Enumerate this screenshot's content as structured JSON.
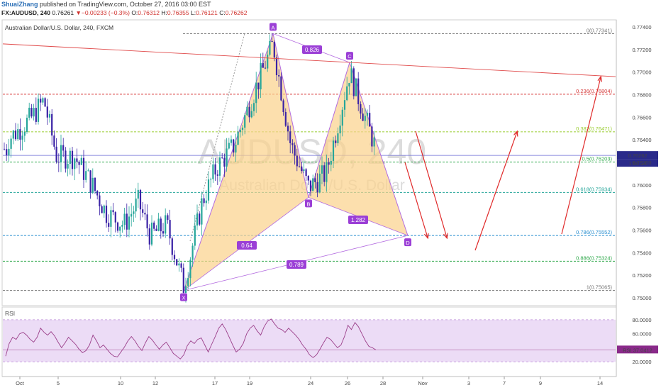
{
  "header": {
    "author": "ShuaiZhang",
    "published": "published on TradingView.com, October 27, 2016 03:00 EST",
    "symbol": "FX:AUDUSD, 240",
    "last": "0.76261",
    "change": "−0.00233 (−0.3%)",
    "open_label": "O:",
    "open": "0.76312",
    "high_label": "H:",
    "high": "0.76355",
    "low_label": "L:",
    "low": "0.76121",
    "close_label": "C:",
    "close": "0.76262"
  },
  "chart_subtitle": "Australian Dollar/U.S. Dollar, 240, FXCM",
  "watermark": {
    "symbol": "AUDUSD, 240",
    "name": "Australian Dollar/U.S. Dollar"
  },
  "colors": {
    "bull": "#26a69a",
    "bear": "#3a22a6",
    "pattern_fill": "#fbd28a",
    "pattern_line": "#b36be0",
    "label_bg": "#9b3fd6",
    "trend": "#e04a4a",
    "arrow": "#e02a2a",
    "rsi_line": "#9b3f8a",
    "rsi_band": "#ecdcf6"
  },
  "chart_data": {
    "type": "candlestick",
    "y_ticks": [
      "0.77400",
      "0.77200",
      "0.77000",
      "0.76800",
      "0.76600",
      "0.76400",
      "0.76200",
      "0.76000",
      "0.75800",
      "0.75600",
      "0.75400",
      "0.75200",
      "0.75000"
    ],
    "ylim": [
      0.7496,
      0.7746
    ],
    "x_ticks": [
      "Oct",
      "5",
      "10",
      "12",
      "17",
      "19",
      "24",
      "26",
      "28",
      "Nov",
      "3",
      "7",
      "9",
      "14"
    ],
    "price_label": "0.76262",
    "countdown_label": "1:00:14",
    "fib_levels": [
      {
        "ratio": "0",
        "price": 0.77341,
        "label": "0(0.77341)",
        "color": "#777777"
      },
      {
        "ratio": "0.236",
        "price": 0.76804,
        "label": "0.236(0.76804)",
        "color": "#d63b3b"
      },
      {
        "ratio": "0.382",
        "price": 0.76471,
        "label": "0.382(0.76471)",
        "color": "#9acd32"
      },
      {
        "ratio": "0.5",
        "price": 0.76203,
        "label": "0.5(0.76203)",
        "color": "#2ea84a"
      },
      {
        "ratio": "0.618",
        "price": 0.75934,
        "label": "0.618(0.75934)",
        "color": "#26a69a"
      },
      {
        "ratio": "0.786",
        "price": 0.75552,
        "label": "0.786(0.75552)",
        "color": "#2a8fd0"
      },
      {
        "ratio": "0.886",
        "price": 0.75324,
        "label": "0.886(0.75324)",
        "color": "#2ea84a"
      },
      {
        "ratio": "1",
        "price": 0.75065,
        "label": "1(0.75065)",
        "color": "#777777"
      }
    ],
    "pattern_points": [
      {
        "name": "X",
        "price": 0.75065
      },
      {
        "name": "A",
        "price": 0.77341
      },
      {
        "name": "B",
        "price": 0.7589
      },
      {
        "name": "C",
        "price": 0.77085
      },
      {
        "name": "D",
        "price": 0.75552
      }
    ],
    "pattern_ratios": [
      "0.826",
      "0.64",
      "1.282",
      "0.789"
    ],
    "trendline": {
      "start_price": 0.7725,
      "end_price": 0.7696
    },
    "rsi": {
      "label": "RSI",
      "value_label": "37.0412",
      "y_ticks": [
        "80.0000",
        "60.0000",
        "20.0000"
      ],
      "overbought": 80,
      "oversold": 20,
      "values": [
        28,
        46,
        55,
        52,
        60,
        62,
        58,
        52,
        48,
        55,
        68,
        62,
        58,
        63,
        57,
        48,
        40,
        47,
        55,
        50,
        45,
        38,
        33,
        36,
        44,
        58,
        50,
        40,
        44,
        38,
        32,
        28,
        27,
        34,
        41,
        50,
        56,
        50,
        42,
        36,
        47,
        56,
        51,
        44,
        38,
        44,
        48,
        40,
        32,
        28,
        24,
        30,
        43,
        50,
        46,
        52,
        54,
        44,
        34,
        45,
        56,
        68,
        74,
        66,
        55,
        44,
        34,
        38,
        46,
        60,
        68,
        72,
        64,
        58,
        70,
        78,
        81,
        74,
        68,
        66,
        62,
        68,
        63,
        58,
        52,
        44,
        38,
        30,
        26,
        30,
        38,
        47,
        55,
        52,
        46,
        40,
        44,
        56,
        72,
        66,
        76,
        70,
        60,
        50,
        42,
        40,
        37
      ]
    }
  }
}
